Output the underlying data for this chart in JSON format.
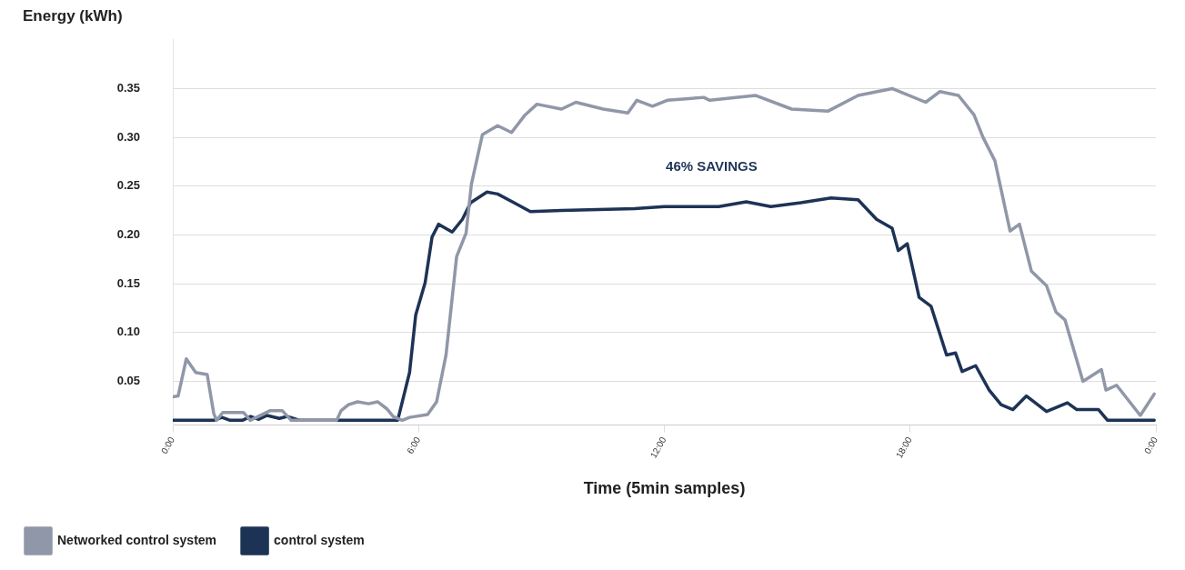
{
  "chart_data": {
    "type": "line",
    "ylabel": "Energy (kWh)",
    "xlabel": "Time (5min samples)",
    "xlim": [
      0,
      24
    ],
    "xticks": [
      {
        "value": 0,
        "label": "0:00"
      },
      {
        "value": 6,
        "label": "6:00"
      },
      {
        "value": 12,
        "label": "12:00"
      },
      {
        "value": 18,
        "label": "18:00"
      },
      {
        "value": 24,
        "label": "0:00"
      }
    ],
    "ylim": [
      0.005,
      0.4
    ],
    "yticks": [
      0.05,
      {
        "value": 0.1,
        "label": "0.10"
      },
      0.15,
      {
        "value": 0.2,
        "label": "0.20"
      },
      0.25,
      {
        "value": 0.3,
        "label": "0.30"
      },
      0.35
    ],
    "grid": "y",
    "legend": "bottom left",
    "marker": "none",
    "line_style": "solid",
    "annotations": [
      "46% SAVINGS"
    ],
    "series": [
      {
        "name": "Networked control system",
        "color": "#9097a8",
        "x": [
          0,
          0.13,
          0.33,
          0.56,
          0.84,
          1.0,
          1.07,
          1.22,
          1.73,
          1.89,
          2.38,
          2.67,
          2.89,
          4.0,
          4.11,
          4.29,
          4.51,
          4.78,
          5.0,
          5.22,
          5.38,
          5.6,
          5.78,
          6.22,
          6.44,
          6.67,
          6.93,
          7.16,
          7.29,
          7.56,
          7.93,
          8.27,
          8.6,
          8.89,
          9.49,
          9.84,
          10.51,
          11.11,
          11.33,
          11.71,
          12.07,
          12.96,
          13.11,
          14.22,
          15.11,
          16.0,
          16.73,
          17.56,
          18.38,
          18.73,
          19.18,
          19.56,
          19.78,
          20.07,
          20.44,
          20.67,
          20.96,
          21.33,
          21.56,
          21.78,
          22.22,
          22.67,
          22.78,
          23.04,
          23.62,
          23.96
        ],
        "values": [
          0.034,
          0.035,
          0.073,
          0.059,
          0.057,
          0.017,
          0.01,
          0.018,
          0.018,
          0.01,
          0.02,
          0.02,
          0.01,
          0.01,
          0.02,
          0.026,
          0.029,
          0.027,
          0.029,
          0.022,
          0.014,
          0.01,
          0.013,
          0.016,
          0.029,
          0.077,
          0.178,
          0.202,
          0.252,
          0.303,
          0.312,
          0.305,
          0.323,
          0.334,
          0.329,
          0.336,
          0.329,
          0.325,
          0.338,
          0.332,
          0.338,
          0.341,
          0.338,
          0.343,
          0.329,
          0.327,
          0.343,
          0.35,
          0.336,
          0.347,
          0.343,
          0.323,
          0.3,
          0.276,
          0.204,
          0.211,
          0.163,
          0.148,
          0.121,
          0.113,
          0.05,
          0.062,
          0.041,
          0.046,
          0.015,
          0.037
        ]
      },
      {
        "name": "control system",
        "color": "#1d3356",
        "x": [
          0,
          1.0,
          1.2,
          1.4,
          1.7,
          1.9,
          2.1,
          2.3,
          2.6,
          2.8,
          3.1,
          5.49,
          5.78,
          5.93,
          6.16,
          6.33,
          6.49,
          6.82,
          7.07,
          7.27,
          7.67,
          7.93,
          8.29,
          8.73,
          9.49,
          11.27,
          12.0,
          13.33,
          14.0,
          14.6,
          15.33,
          16.07,
          16.73,
          17.18,
          17.56,
          17.71,
          17.93,
          18.22,
          18.51,
          18.89,
          19.11,
          19.27,
          19.6,
          19.93,
          20.22,
          20.51,
          20.84,
          21.33,
          21.84,
          22.07,
          22.6,
          22.82,
          23.96
        ],
        "values": [
          0.01,
          0.01,
          0.013,
          0.01,
          0.01,
          0.014,
          0.011,
          0.015,
          0.012,
          0.014,
          0.01,
          0.01,
          0.059,
          0.118,
          0.151,
          0.198,
          0.211,
          0.203,
          0.216,
          0.233,
          0.244,
          0.242,
          0.234,
          0.224,
          0.225,
          0.227,
          0.229,
          0.229,
          0.234,
          0.229,
          0.233,
          0.238,
          0.236,
          0.216,
          0.207,
          0.184,
          0.191,
          0.136,
          0.127,
          0.077,
          0.079,
          0.06,
          0.066,
          0.041,
          0.026,
          0.021,
          0.035,
          0.019,
          0.028,
          0.021,
          0.021,
          0.01,
          0.01
        ]
      }
    ]
  }
}
